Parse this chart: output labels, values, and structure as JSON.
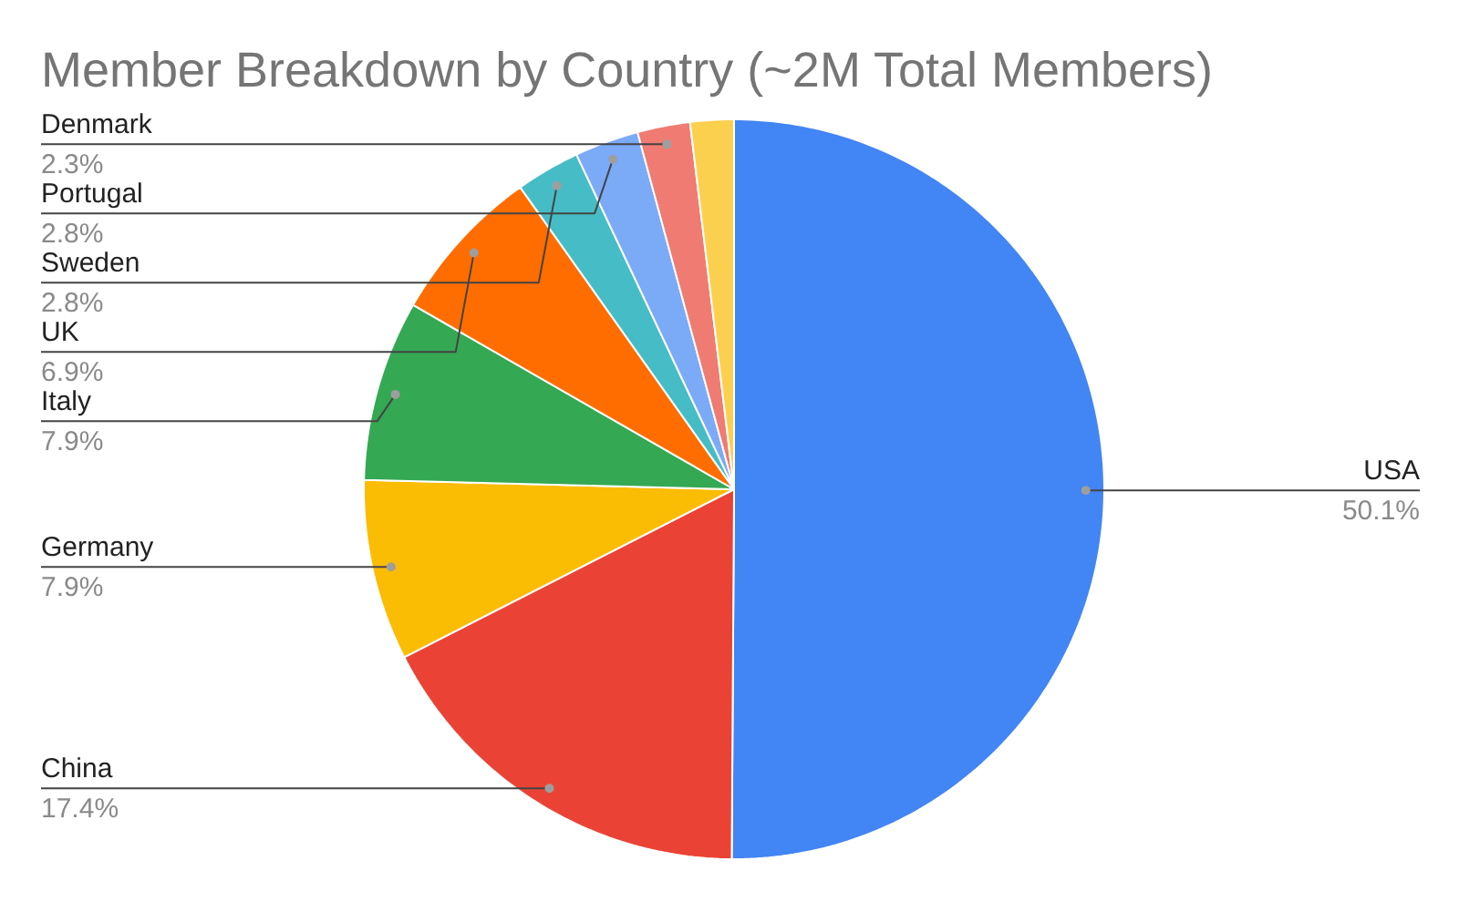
{
  "chart_data": {
    "type": "pie",
    "title": "Member Breakdown by Country (~2M Total Members)",
    "categories": [
      "USA",
      "China",
      "Germany",
      "Italy",
      "UK",
      "Sweden",
      "Portugal",
      "Denmark",
      null
    ],
    "values": [
      50.1,
      17.4,
      7.9,
      7.9,
      6.9,
      2.8,
      2.8,
      2.3,
      1.9
    ],
    "value_labels": [
      "50.1%",
      "17.4%",
      "7.9%",
      "7.9%",
      "6.9%",
      "2.8%",
      "2.8%",
      "2.3%",
      null
    ],
    "colors": [
      "#4285f4",
      "#ea4335",
      "#fbbc04",
      "#34a853",
      "#ff6d01",
      "#46bdc6",
      "#7baaf7",
      "#f07b72",
      "#fcd04f"
    ]
  }
}
